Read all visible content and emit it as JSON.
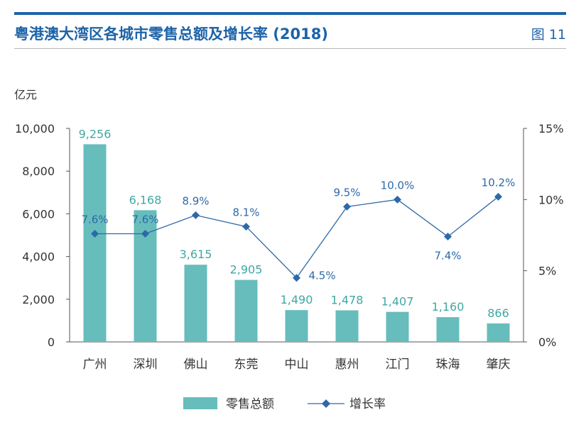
{
  "header": {
    "title": "粤港澳大湾区各城市零售总额及增长率 (2018)",
    "figure_label": "图 11"
  },
  "colors": {
    "accent": "#1d63a8",
    "bar": "#66bdbc",
    "bar_label": "#3fa8a4",
    "line": "#2d69a8",
    "axis": "#555555"
  },
  "chart_data": {
    "type": "bar",
    "title": "粤港澳大湾区各城市零售总额及增长率 (2018)",
    "ylabel": "亿元",
    "categories": [
      "广州",
      "深圳",
      "佛山",
      "东莞",
      "中山",
      "惠州",
      "江门",
      "珠海",
      "肇庆"
    ],
    "ylim": [
      0,
      10000
    ],
    "y_ticks": [
      "0",
      "2,000",
      "4,000",
      "6,000",
      "8,000",
      "10,000"
    ],
    "y2lim": [
      0,
      15
    ],
    "y2_ticks": [
      "0%",
      "5%",
      "10%",
      "15%"
    ],
    "series": [
      {
        "name": "零售总额",
        "type": "bar",
        "axis": "left",
        "values": [
          9256,
          6168,
          3615,
          2905,
          1490,
          1478,
          1407,
          1160,
          866
        ],
        "labels": [
          "9,256",
          "6,168",
          "3,615",
          "2,905",
          "1,490",
          "1,478",
          "1,407",
          "1,160",
          "866"
        ]
      },
      {
        "name": "增长率",
        "type": "line",
        "axis": "right",
        "values": [
          7.6,
          7.6,
          8.9,
          8.1,
          4.5,
          9.5,
          10.0,
          7.4,
          10.2
        ],
        "labels": [
          "7.6%",
          "7.6%",
          "8.9%",
          "8.1%",
          "4.5%",
          "9.5%",
          "10.0%",
          "7.4%",
          "10.2%"
        ]
      }
    ],
    "legend": [
      "零售总额",
      "增长率"
    ],
    "legend_position": "bottom-center",
    "grid": false
  }
}
